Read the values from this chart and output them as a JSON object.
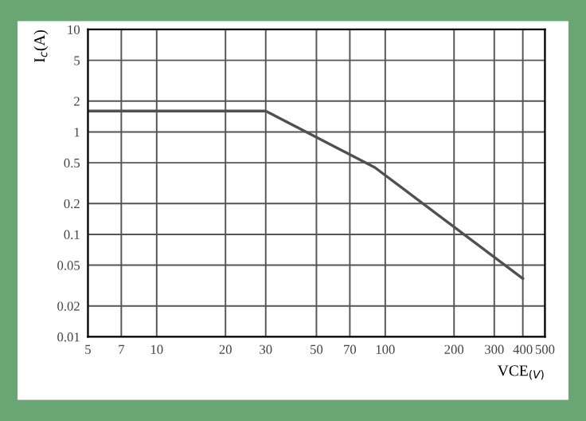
{
  "chart_data": {
    "type": "line",
    "xlabel": "VCE$_{(V)}$",
    "ylabel": "I$_{c}$(A)",
    "log": "xy",
    "x": [
      5,
      30,
      90,
      400
    ],
    "series": [
      {
        "color": "#505050",
        "values": [
          1.6,
          1.6,
          0.45,
          0.037
        ]
      }
    ],
    "xlim": [
      5,
      500
    ],
    "ylim": [
      0.01,
      10
    ],
    "xticks": [
      5,
      7,
      10,
      20,
      30,
      50,
      70,
      100,
      200,
      300,
      400,
      500
    ],
    "yticks": [
      0.01,
      0.02,
      0.05,
      0.1,
      0.2,
      0.5,
      1,
      2,
      5,
      10
    ],
    "grid": true,
    "marker": "none",
    "line_style": "solid"
  }
}
